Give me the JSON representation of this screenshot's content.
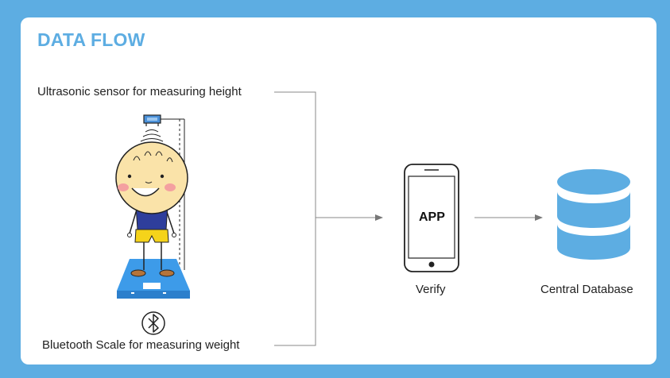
{
  "title": "DATA FLOW",
  "labels": {
    "sensor": "Ultrasonic sensor for measuring height",
    "scale": "Bluetooth Scale for measuring weight",
    "verify": "Verify",
    "database": "Central Database"
  },
  "phone": {
    "screen_text": "APP"
  },
  "colors": {
    "background": "#5dade2",
    "card": "#ffffff",
    "title": "#5dade2",
    "database": "#5dade2",
    "scale": "#3d9be9",
    "shirt": "#2e3e9c",
    "shorts": "#f5d31a",
    "face": "#fae3a9",
    "connector": "#777777"
  },
  "icons": [
    "ultrasonic-sensor-icon",
    "child-figure",
    "bluetooth-scale-icon",
    "bluetooth-icon",
    "smartphone-icon",
    "database-icon"
  ]
}
